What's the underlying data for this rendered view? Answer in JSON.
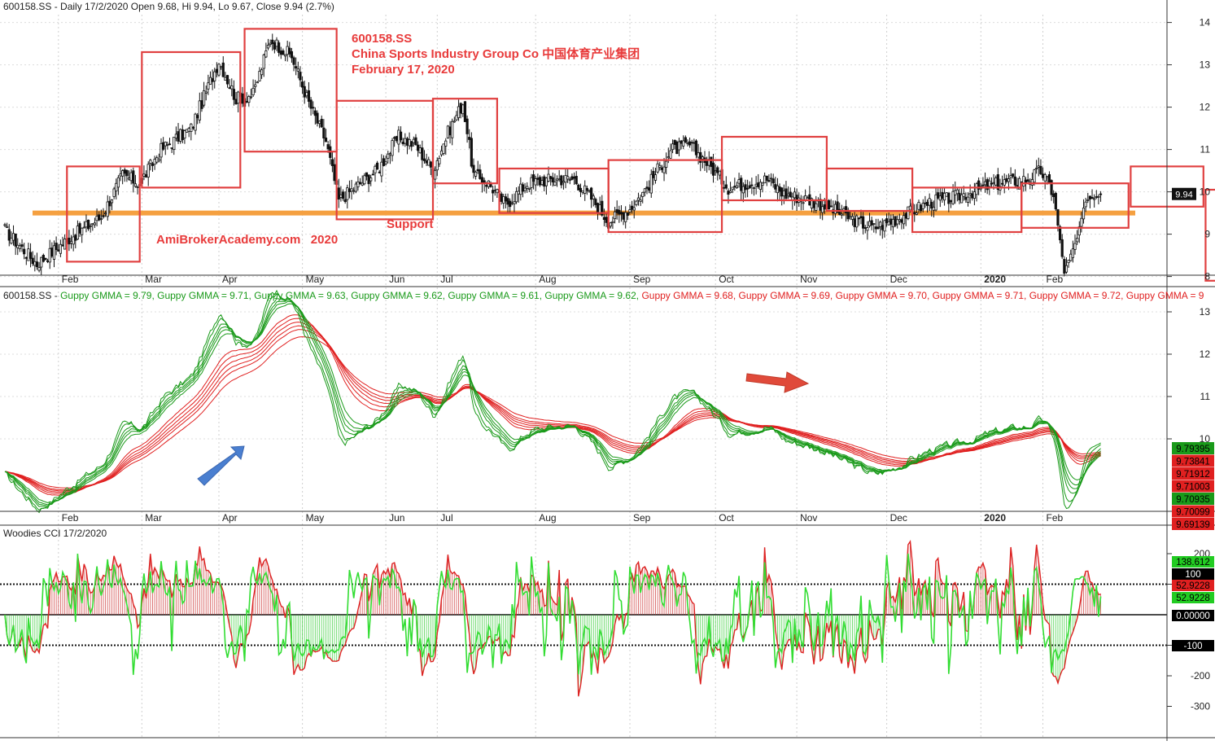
{
  "header": {
    "price_info": "600158.SS - Daily 17/2/2020 Open 9.68, Hi 9.94, Lo 9.67, Close 9.94 (2.7%)",
    "gmma_prefix": "600158.SS - ",
    "cci_title": "Woodies CCI  17/2/2020"
  },
  "gmma_legend": [
    {
      "label": "Guppy GMMA = 9.79",
      "color": "#1a9a1a"
    },
    {
      "label": "Guppy GMMA = 9.71",
      "color": "#1a9a1a"
    },
    {
      "label": "Guppy GMMA = 9.63",
      "color": "#1a9a1a"
    },
    {
      "label": "Guppy GMMA = 9.62",
      "color": "#1a9a1a"
    },
    {
      "label": "Guppy GMMA = 9.61",
      "color": "#1a9a1a"
    },
    {
      "label": "Guppy GMMA = 9.62",
      "color": "#1a9a1a"
    },
    {
      "label": "Guppy GMMA = 9.68",
      "color": "#e02020"
    },
    {
      "label": "Guppy GMMA = 9.69",
      "color": "#e02020"
    },
    {
      "label": "Guppy GMMA = 9.70",
      "color": "#e02020"
    },
    {
      "label": "Guppy GMMA = 9.71",
      "color": "#e02020"
    },
    {
      "label": "Guppy GMMA = 9.72",
      "color": "#e02020"
    },
    {
      "label": "Guppy GMMA = 9",
      "color": "#e02020"
    }
  ],
  "annotations": {
    "ticker": "600158.SS",
    "company": "China Sports Industry Group Co 中国体育产业集团",
    "date": "February 17, 2020",
    "support": "Support",
    "watermark": "AmiBrokerAcademy.com   2020"
  },
  "colors": {
    "annotation_red": "#e83b3b",
    "box_red": "#e04040",
    "support_orange": "#f5a040",
    "short_green": "#1a9a1a",
    "long_red": "#e02020",
    "cci_green": "#33dd33",
    "cci_red": "#dd2222",
    "arrow_blue": "#4a7fd0",
    "arrow_red": "#e04a3a"
  },
  "chart_data": [
    {
      "type": "candlestick",
      "panel": "price",
      "months": [
        "Feb",
        "Mar",
        "Apr",
        "May",
        "Jun",
        "Jul",
        "Aug",
        "Sep",
        "Oct",
        "Nov",
        "Dec",
        "2020",
        "Feb"
      ],
      "y_ticks": [
        "14",
        "13",
        "12",
        "11",
        "10",
        "9",
        "8"
      ],
      "ylim": [
        7.8,
        14.3
      ],
      "last_close_label": "9.94",
      "support_level": 9.5,
      "anchor_closes": [
        [
          0,
          9.1
        ],
        [
          15,
          8.3
        ],
        [
          30,
          8.9
        ],
        [
          45,
          9.4
        ],
        [
          55,
          10.4
        ],
        [
          63,
          10.2
        ],
        [
          73,
          11.0
        ],
        [
          87,
          11.5
        ],
        [
          100,
          13.1
        ],
        [
          108,
          12.2
        ],
        [
          116,
          12.3
        ],
        [
          124,
          13.6
        ],
        [
          134,
          13.2
        ],
        [
          142,
          12.1
        ],
        [
          150,
          11.2
        ],
        [
          156,
          9.8
        ],
        [
          166,
          10.2
        ],
        [
          174,
          10.5
        ],
        [
          184,
          11.3
        ],
        [
          192,
          11.1
        ],
        [
          200,
          10.5
        ],
        [
          207,
          11.4
        ],
        [
          214,
          12.1
        ],
        [
          219,
          10.4
        ],
        [
          226,
          10.2
        ],
        [
          234,
          9.7
        ],
        [
          244,
          10.2
        ],
        [
          256,
          10.3
        ],
        [
          266,
          10.3
        ],
        [
          275,
          9.8
        ],
        [
          282,
          9.3
        ],
        [
          292,
          9.6
        ],
        [
          300,
          10.1
        ],
        [
          306,
          10.6
        ],
        [
          312,
          11.0
        ],
        [
          320,
          11.1
        ],
        [
          328,
          10.7
        ],
        [
          338,
          10.1
        ],
        [
          346,
          10.2
        ],
        [
          356,
          10.3
        ],
        [
          364,
          9.95
        ],
        [
          373,
          9.85
        ],
        [
          382,
          9.7
        ],
        [
          390,
          9.5
        ],
        [
          398,
          9.3
        ],
        [
          406,
          9.15
        ],
        [
          414,
          9.3
        ],
        [
          422,
          9.5
        ],
        [
          432,
          9.75
        ],
        [
          442,
          9.85
        ],
        [
          452,
          10.0
        ],
        [
          460,
          10.15
        ],
        [
          470,
          10.25
        ],
        [
          478,
          10.3
        ],
        [
          484,
          10.5
        ],
        [
          490,
          9.95
        ],
        [
          495,
          8.1
        ],
        [
          501,
          8.9
        ],
        [
          505,
          9.8
        ],
        [
          512,
          9.94
        ]
      ],
      "boxes": [
        {
          "from": 29,
          "to": 63,
          "high": 10.6,
          "low": 8.35
        },
        {
          "from": 64,
          "to": 110,
          "high": 13.3,
          "low": 10.1
        },
        {
          "from": 112,
          "to": 155,
          "high": 13.85,
          "low": 10.95
        },
        {
          "from": 155,
          "to": 200,
          "high": 12.15,
          "low": 9.35
        },
        {
          "from": 200,
          "to": 230,
          "high": 12.2,
          "low": 10.2
        },
        {
          "from": 231,
          "to": 282,
          "high": 10.55,
          "low": 9.5
        },
        {
          "from": 282,
          "to": 335,
          "high": 10.75,
          "low": 9.05
        },
        {
          "from": 335,
          "to": 384,
          "high": 11.3,
          "low": 9.8
        },
        {
          "from": 384,
          "to": 424,
          "high": 10.55,
          "low": 9.55
        },
        {
          "from": 424,
          "to": 475,
          "high": 10.1,
          "low": 9.05
        },
        {
          "from": 475,
          "to": 525,
          "high": 10.2,
          "low": 9.15
        },
        {
          "from": 526,
          "to": 560,
          "high": 10.6,
          "low": 9.65
        },
        {
          "from": 561,
          "to": 586,
          "high": 10.05,
          "low": 7.9
        }
      ]
    },
    {
      "type": "line",
      "panel": "gmma",
      "short_periods": [
        3,
        5,
        8,
        10,
        12,
        15
      ],
      "long_periods": [
        30,
        35,
        40,
        45,
        50,
        60
      ],
      "y_ticks": [
        "13",
        "12",
        "11",
        "10"
      ],
      "ylim": [
        8.4,
        13.5
      ],
      "value_labels": [
        {
          "text": "9.79395",
          "color": "#1a9a1a"
        },
        {
          "text": "9.73841",
          "color": "#e02020"
        },
        {
          "text": "9.71912",
          "color": "#e02020"
        },
        {
          "text": "9.71003",
          "color": "#e02020"
        },
        {
          "text": "9.70935",
          "color": "#1a9a1a"
        },
        {
          "text": "9.70099",
          "color": "#e02020"
        },
        {
          "text": "9.69139",
          "color": "#e02020"
        }
      ]
    },
    {
      "type": "line",
      "panel": "cci",
      "series": [
        {
          "name": "",
          "color": "#33dd33"
        },
        {
          "name": "",
          "color": "#dd2222"
        }
      ],
      "y_ticks": [
        "200",
        "100",
        "-100",
        "-200",
        "-300"
      ],
      "ylim": [
        -400,
        250
      ],
      "levels": [
        100,
        0,
        -100
      ],
      "value_labels": [
        {
          "text": "138.612",
          "bg": "#22cc22",
          "fg": "#000000"
        },
        {
          "text": "100",
          "bg": "#000000",
          "fg": "#ffffff"
        },
        {
          "text": "52.9228",
          "bg": "#e02020",
          "fg": "#000000"
        },
        {
          "text": "52.9228",
          "bg": "#22cc22",
          "fg": "#000000"
        },
        {
          "text": "0.00000",
          "bg": "#000000",
          "fg": "#ffffff"
        },
        {
          "text": "-100",
          "bg": "#000000",
          "fg": "#ffffff"
        }
      ]
    }
  ]
}
